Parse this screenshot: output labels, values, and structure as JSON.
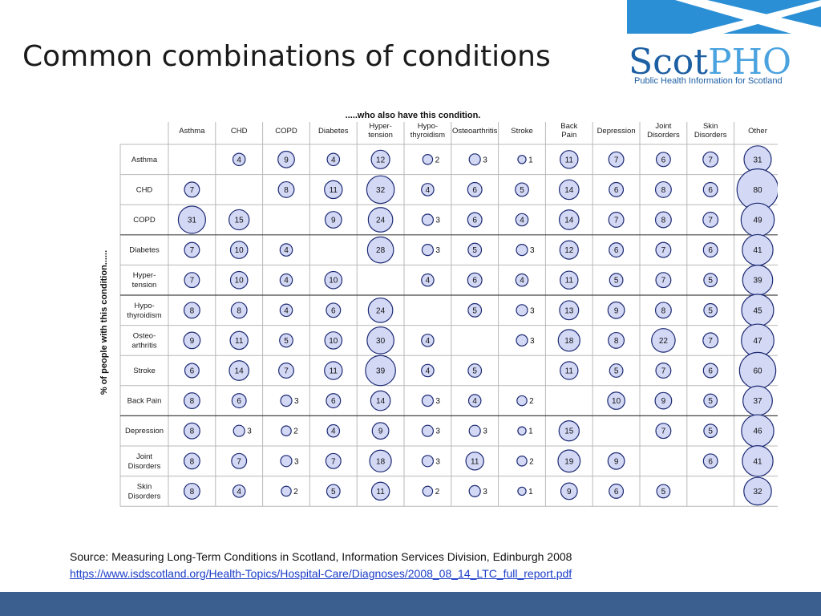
{
  "slide": {
    "title": "Common combinations of conditions",
    "source_line": "Source: Measuring Long-Term Conditions in Scotland, Information Services Division, Edinburgh 2008",
    "source_url": "https://www.isdscotland.org/Health-Topics/Hospital-Care/Diagnoses/2008_08_14_LTC_full_report.pdf"
  },
  "logo": {
    "text_scot": "Scot",
    "text_pho": "PHO",
    "tagline": "Public Health Information for Scotland",
    "color_dark": "#1d5fa3",
    "color_light": "#4aa3df"
  },
  "colors": {
    "bubble_fill": "#d3d8f5",
    "bubble_stroke": "#1c2a72",
    "footer": "#3b5f8f"
  },
  "chart_data": {
    "type": "bubble-matrix",
    "column_title": ".....who also have this condition.",
    "row_title": "% of people with this condition......",
    "columns": [
      "Asthma",
      "CHD",
      "COPD",
      "Diabetes",
      "Hyper-\ntension",
      "Hypo-\nthyroidism",
      "Osteoarthritis",
      "Stroke",
      "Back\nPain",
      "Depression",
      "Joint\nDisorders",
      "Skin\nDisorders",
      "Other"
    ],
    "rows": [
      "Asthma",
      "CHD",
      "COPD",
      "Diabetes",
      "Hyper-\ntension",
      "Hypo-\nthyroidism",
      "Osteo-\narthritis",
      "Stroke",
      "Back Pain",
      "Depression",
      "Joint\nDisorders",
      "Skin\nDisorders"
    ],
    "values": [
      [
        null,
        4,
        9,
        4,
        12,
        2,
        3,
        1,
        11,
        7,
        6,
        7,
        31
      ],
      [
        7,
        null,
        8,
        11,
        32,
        4,
        6,
        5,
        14,
        6,
        8,
        6,
        80
      ],
      [
        31,
        15,
        null,
        9,
        24,
        3,
        6,
        4,
        14,
        7,
        8,
        7,
        49
      ],
      [
        7,
        10,
        4,
        null,
        28,
        3,
        5,
        3,
        12,
        6,
        7,
        6,
        41
      ],
      [
        7,
        10,
        4,
        10,
        null,
        4,
        6,
        4,
        11,
        5,
        7,
        5,
        39
      ],
      [
        8,
        8,
        4,
        6,
        24,
        null,
        5,
        3,
        13,
        9,
        8,
        5,
        45
      ],
      [
        9,
        11,
        5,
        10,
        30,
        4,
        null,
        3,
        18,
        8,
        22,
        7,
        47
      ],
      [
        6,
        14,
        7,
        11,
        39,
        4,
        5,
        null,
        11,
        5,
        7,
        6,
        60
      ],
      [
        8,
        6,
        3,
        6,
        14,
        3,
        4,
        2,
        null,
        10,
        9,
        5,
        37
      ],
      [
        8,
        3,
        2,
        4,
        9,
        3,
        3,
        1,
        15,
        null,
        7,
        5,
        46
      ],
      [
        8,
        7,
        3,
        7,
        18,
        3,
        11,
        2,
        19,
        9,
        null,
        6,
        41
      ],
      [
        8,
        4,
        2,
        5,
        11,
        2,
        3,
        1,
        9,
        6,
        5,
        null,
        32
      ]
    ]
  }
}
